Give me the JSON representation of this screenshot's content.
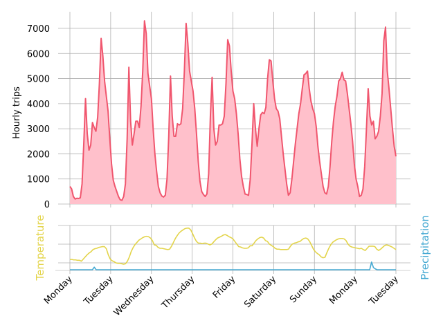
{
  "chart_data": [
    {
      "type": "area",
      "ylabel": "Hourly trips",
      "xlabel": "",
      "ylim": [
        0,
        7600
      ],
      "yticks": [
        0,
        1000,
        2000,
        3000,
        4000,
        5000,
        6000,
        7000
      ],
      "x_tick_labels": [
        "Monday",
        "Tuesday",
        "Wednesday",
        "Thursday",
        "Friday",
        "Saturday",
        "Sunday",
        "Monday",
        "Tuesday"
      ],
      "grid": true,
      "color": "#f0566e",
      "fill_color": "#ffc0cb",
      "series": [
        {
          "values": [
            700,
            600,
            300,
            200,
            230,
            220,
            250,
            800,
            2400,
            4200,
            2800,
            2150,
            2350,
            3250,
            3050,
            2900,
            3450,
            4800,
            6600,
            5900,
            4900,
            4300,
            3700,
            2600,
            1600,
            950,
            700,
            500,
            300,
            170,
            150,
            300,
            800,
            2600,
            5450,
            3300,
            2350,
            2800,
            3300,
            3300,
            3050,
            3900,
            5300,
            7300,
            6800,
            5200,
            4700,
            4200,
            3000,
            2000,
            1300,
            700,
            450,
            320,
            280,
            350,
            1000,
            2700,
            5100,
            3500,
            2700,
            2700,
            3200,
            3150,
            3200,
            3800,
            5300,
            7200,
            6400,
            5300,
            4900,
            4500,
            3800,
            2800,
            1700,
            900,
            500,
            380,
            300,
            400,
            1200,
            3500,
            5050,
            3000,
            2350,
            2500,
            3150,
            3150,
            3200,
            3500,
            4800,
            6550,
            6300,
            5300,
            4500,
            4200,
            3600,
            2800,
            1800,
            1100,
            700,
            400,
            380,
            350,
            1000,
            2400,
            4000,
            3000,
            2300,
            3000,
            3550,
            3650,
            3600,
            3850,
            5000,
            5750,
            5700,
            4900,
            4200,
            3800,
            3700,
            3400,
            2700,
            2000,
            1400,
            800,
            350,
            450,
            1000,
            1700,
            2400,
            3000,
            3600,
            4000,
            4600,
            5150,
            5200,
            5300,
            4600,
            4100,
            3800,
            3600,
            3100,
            2300,
            1700,
            1200,
            700,
            450,
            400,
            700,
            1500,
            2500,
            3300,
            3900,
            4300,
            4900,
            5000,
            5250,
            4950,
            4900,
            4400,
            3800,
            3200,
            2500,
            1600,
            1000,
            700,
            300,
            350,
            600,
            1500,
            3000,
            4600,
            3500,
            3150,
            3300,
            2600,
            2700,
            2900,
            3500,
            4400,
            6500,
            7050,
            5300,
            4600,
            3800,
            3000,
            2300,
            1900
          ]
        }
      ]
    },
    {
      "type": "line",
      "ylabel_left": "Temperature",
      "ylabel_right": "Precipitation",
      "grid": true,
      "series": [
        {
          "name": "Temperature",
          "color": "#e3d44a",
          "values": [
            0.24,
            0.24,
            0.23,
            0.23,
            0.22,
            0.22,
            0.2,
            0.25,
            0.3,
            0.35,
            0.39,
            0.42,
            0.47,
            0.49,
            0.5,
            0.52,
            0.53,
            0.54,
            0.54,
            0.49,
            0.35,
            0.25,
            0.21,
            0.19,
            0.16,
            0.15,
            0.15,
            0.14,
            0.13,
            0.14,
            0.2,
            0.3,
            0.43,
            0.52,
            0.59,
            0.64,
            0.69,
            0.72,
            0.75,
            0.77,
            0.78,
            0.77,
            0.74,
            0.68,
            0.58,
            0.57,
            0.52,
            0.5,
            0.5,
            0.49,
            0.48,
            0.47,
            0.48,
            0.55,
            0.64,
            0.73,
            0.8,
            0.86,
            0.9,
            0.93,
            0.96,
            0.97,
            0.97,
            0.93,
            0.84,
            0.74,
            0.66,
            0.62,
            0.62,
            0.61,
            0.62,
            0.62,
            0.6,
            0.58,
            0.6,
            0.65,
            0.7,
            0.74,
            0.76,
            0.78,
            0.81,
            0.82,
            0.8,
            0.77,
            0.75,
            0.72,
            0.66,
            0.6,
            0.54,
            0.53,
            0.51,
            0.5,
            0.5,
            0.51,
            0.56,
            0.56,
            0.62,
            0.68,
            0.72,
            0.75,
            0.76,
            0.74,
            0.68,
            0.66,
            0.6,
            0.57,
            0.54,
            0.5,
            0.48,
            0.48,
            0.47,
            0.47,
            0.47,
            0.47,
            0.48,
            0.55,
            0.6,
            0.62,
            0.63,
            0.65,
            0.66,
            0.7,
            0.73,
            0.74,
            0.72,
            0.66,
            0.57,
            0.48,
            0.42,
            0.38,
            0.35,
            0.3,
            0.28,
            0.29,
            0.4,
            0.5,
            0.58,
            0.64,
            0.67,
            0.7,
            0.72,
            0.73,
            0.73,
            0.72,
            0.68,
            0.6,
            0.55,
            0.53,
            0.52,
            0.51,
            0.5,
            0.49,
            0.5,
            0.47,
            0.45,
            0.5,
            0.55,
            0.55,
            0.55,
            0.54,
            0.48,
            0.45,
            0.48,
            0.52,
            0.56,
            0.58,
            0.57,
            0.55,
            0.53,
            0.5,
            0.47
          ]
        },
        {
          "name": "Precipitation",
          "color": "#45a9d2",
          "values": [
            0,
            0,
            0,
            0,
            0,
            0,
            0,
            0,
            0,
            0,
            0,
            0,
            0,
            0.06,
            0,
            0,
            0,
            0,
            0,
            0,
            0,
            0,
            0,
            0,
            0,
            0,
            0,
            0,
            0,
            0,
            0,
            0,
            0,
            0,
            0,
            0,
            0,
            0,
            0,
            0,
            0,
            0,
            0,
            0,
            0,
            0,
            0,
            0,
            0,
            0,
            0,
            0,
            0,
            0,
            0,
            0,
            0,
            0,
            0,
            0,
            0,
            0,
            0,
            0,
            0,
            0,
            0,
            0,
            0,
            0,
            0,
            0,
            0,
            0,
            0,
            0,
            0,
            0,
            0,
            0,
            0,
            0,
            0,
            0,
            0,
            0,
            0,
            0,
            0,
            0,
            0,
            0,
            0,
            0,
            0,
            0,
            0,
            0,
            0,
            0,
            0,
            0,
            0,
            0,
            0,
            0,
            0,
            0,
            0,
            0,
            0,
            0,
            0,
            0,
            0,
            0,
            0,
            0,
            0,
            0,
            0,
            0,
            0,
            0,
            0,
            0,
            0,
            0,
            0,
            0,
            0,
            0,
            0,
            0,
            0,
            0,
            0,
            0,
            0,
            0,
            0,
            0,
            0,
            0,
            0,
            0,
            0,
            0,
            0,
            0,
            0,
            0,
            0,
            0,
            0,
            0,
            0,
            0,
            0,
            0,
            0,
            0.18,
            0.05,
            0.02,
            0,
            0,
            0,
            0,
            0,
            0,
            0,
            0,
            0,
            0,
            0
          ]
        }
      ]
    }
  ]
}
